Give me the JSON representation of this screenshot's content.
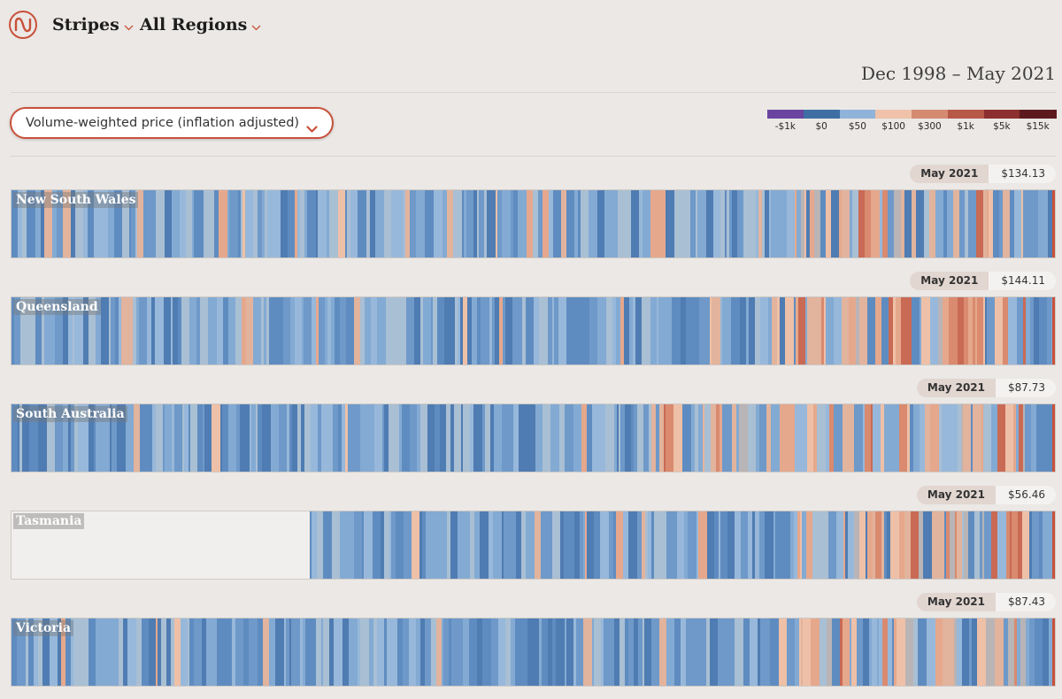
{
  "nav": {
    "stripes_label": "Stripes",
    "regions_label": "All Regions"
  },
  "date_range": "Dec 1998 – May 2021",
  "metric_select": {
    "value": "Volume-weighted price (inflation adjusted)"
  },
  "legend": {
    "items": [
      {
        "label": "-$1k",
        "color": "#6a44a0"
      },
      {
        "label": "$0",
        "color": "#3f6ea4"
      },
      {
        "label": "$50",
        "color": "#8fb3d9"
      },
      {
        "label": "$100",
        "color": "#efc2a9"
      },
      {
        "label": "$300",
        "color": "#d58b72"
      },
      {
        "label": "$1k",
        "color": "#b75848"
      },
      {
        "label": "$5k",
        "color": "#8d2f2f"
      },
      {
        "label": "$15k",
        "color": "#5c1a1f"
      }
    ]
  },
  "colors": {
    "accent": "#c8513b",
    "background": "#ebe8e5"
  },
  "regions": [
    {
      "name": "New South Wales",
      "month": "May 2021",
      "value": "$134.13"
    },
    {
      "name": "Queensland",
      "month": "May 2021",
      "value": "$144.11"
    },
    {
      "name": "South Australia",
      "month": "May 2021",
      "value": "$87.73"
    },
    {
      "name": "Tasmania",
      "month": "May 2021",
      "value": "$56.46"
    },
    {
      "name": "Victoria",
      "month": "May 2021",
      "value": "$87.43"
    }
  ]
}
